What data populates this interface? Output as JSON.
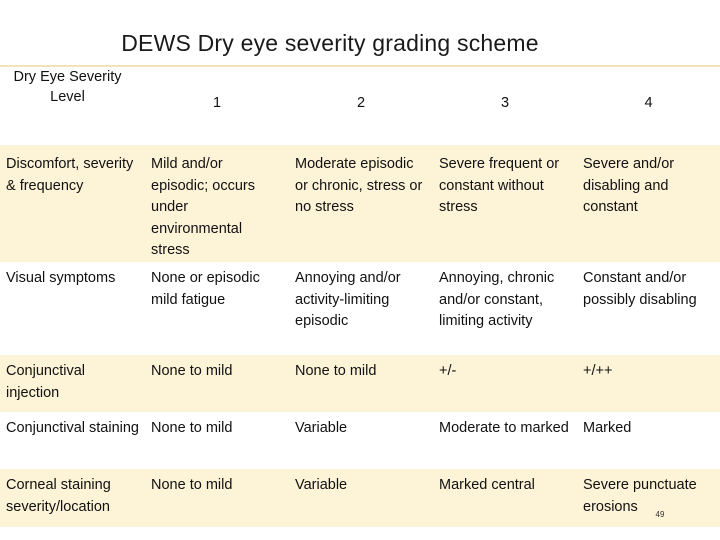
{
  "title": "DEWS  Dry eye severity grading scheme",
  "table": {
    "header_label": "Dry Eye Severity Level",
    "levels": [
      "1",
      "2",
      "3",
      "4"
    ],
    "rows": [
      {
        "label": "Discomfort, severity & frequency",
        "cells": [
          "Mild and/or episodic; occurs under environmental stress",
          "Moderate episodic or chronic, stress or no stress",
          "Severe frequent or constant without stress",
          "Severe and/or disabling and constant"
        ]
      },
      {
        "label": "Visual symptoms",
        "cells": [
          "None or episodic mild fatigue",
          "Annoying and/or activity-limiting episodic",
          "Annoying, chronic and/or constant, limiting activity",
          "Constant and/or possibly disabling"
        ]
      },
      {
        "label": "Conjunctival injection",
        "cells": [
          "None to mild",
          "None to mild",
          "+/-",
          "+/++"
        ]
      },
      {
        "label": "Conjunctival staining",
        "cells": [
          "None to mild",
          "Variable",
          "Moderate to marked",
          "Marked"
        ]
      },
      {
        "label": "Corneal staining severity/location",
        "cells": [
          "None to mild",
          "Variable",
          "Marked central",
          "Severe punctuate erosions"
        ]
      }
    ]
  },
  "page_number": "49",
  "colors": {
    "row_shade": "#fdf3d7",
    "rule": "#f2e3b8"
  }
}
